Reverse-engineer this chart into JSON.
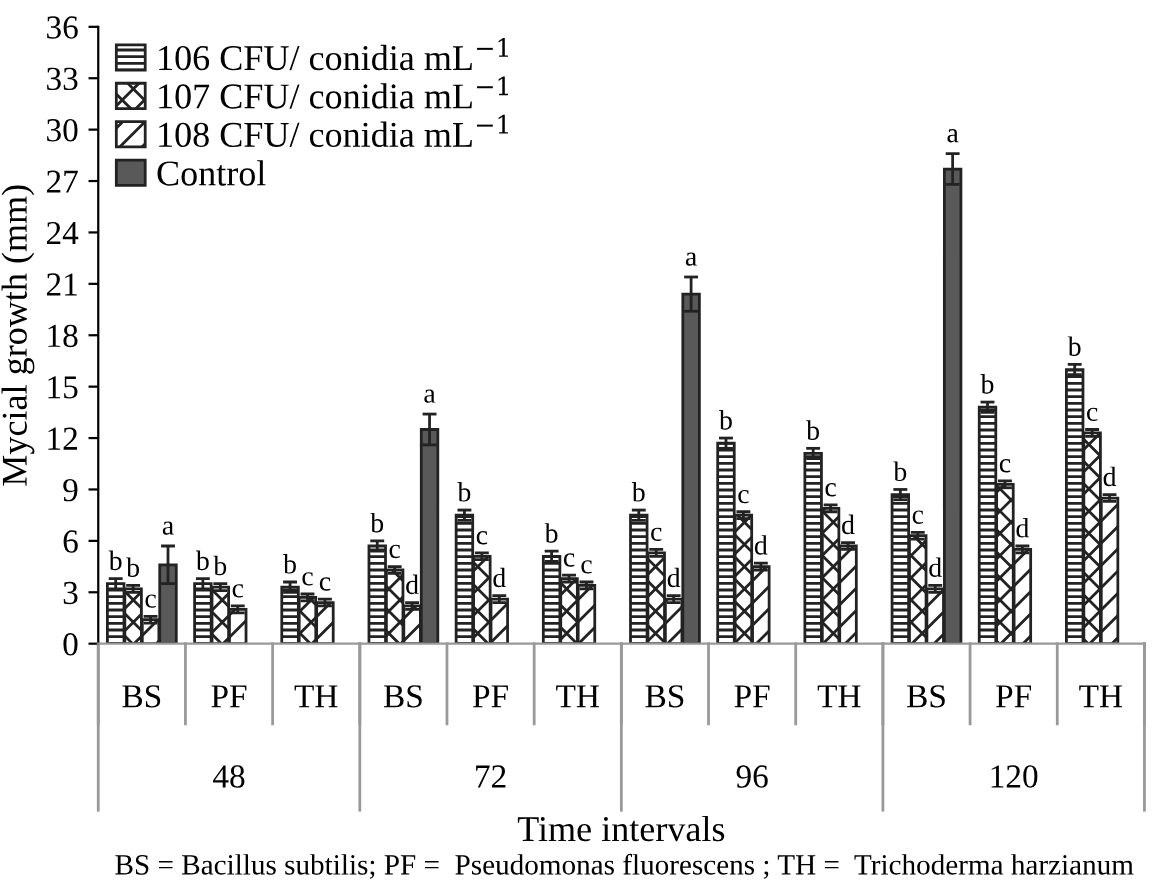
{
  "chart_data": {
    "type": "bar",
    "xlabel": "Time intervals",
    "ylabel": "Mycial growth (mm)",
    "categories": [
      "BS",
      "PF",
      "TH",
      "BS",
      "PF",
      "TH",
      "BS",
      "PF",
      "TH",
      "BS",
      "PF",
      "TH"
    ],
    "series": [
      {
        "name": "106 CFU/ conidia mL$^{−1}$",
        "color": "#222222",
        "values": [
          3.5,
          3.5,
          3.3,
          5.7,
          7.5,
          5.1,
          7.5,
          11.7,
          11.1,
          8.7,
          13.8,
          16.0
        ],
        "errors": [
          0.3,
          0.3,
          0.3,
          0.3,
          0.3,
          0.3,
          0.3,
          0.3,
          0.3,
          0.3,
          0.3,
          0.3
        ],
        "value_labels": [
          "b",
          "b",
          "b",
          "b",
          "b",
          "b",
          "b",
          "b",
          "b",
          "b",
          "b",
          "b"
        ]
      },
      {
        "name": "107 CFU/ conidia mL$^{−1}$",
        "color": "#222222",
        "values": [
          3.2,
          3.3,
          2.7,
          4.3,
          5.1,
          3.8,
          5.3,
          7.5,
          7.9,
          6.3,
          9.3,
          12.3
        ],
        "errors": [
          0.2,
          0.2,
          0.2,
          0.2,
          0.2,
          0.2,
          0.2,
          0.2,
          0.2,
          0.2,
          0.2,
          0.2
        ],
        "value_labels": [
          "b",
          "b",
          "c",
          "c",
          "c",
          "c",
          "c",
          "c",
          "c",
          "c",
          "c",
          "c"
        ]
      },
      {
        "name": "108 CFU/ conidia mL$^{−1}$",
        "color": "#222222",
        "values": [
          1.4,
          2.0,
          2.4,
          2.2,
          2.6,
          3.4,
          2.6,
          4.5,
          5.7,
          3.2,
          5.5,
          8.5
        ],
        "errors": [
          0.2,
          0.2,
          0.2,
          0.2,
          0.2,
          0.2,
          0.2,
          0.2,
          0.2,
          0.2,
          0.2,
          0.2
        ],
        "value_labels": [
          "c",
          "c",
          "c",
          "d",
          "d",
          "c",
          "d",
          "d",
          "d",
          "d",
          "d",
          "d"
        ]
      },
      {
        "name": "Control",
        "color": "#595959",
        "values": [
          4.6,
          null,
          null,
          12.5,
          null,
          null,
          20.4,
          null,
          null,
          27.7,
          null,
          null
        ],
        "errors": [
          1.1,
          null,
          null,
          0.9,
          null,
          null,
          1.0,
          null,
          null,
          0.9,
          null,
          null
        ],
        "value_labels": [
          "a",
          null,
          null,
          "a",
          null,
          null,
          "a",
          null,
          null,
          "a",
          null,
          null
        ]
      }
    ],
    "ylim": [
      0,
      36
    ],
    "yticks": [
      0,
      3,
      6,
      9,
      12,
      15,
      18,
      21,
      24,
      27,
      30,
      33,
      36
    ],
    "grid": false,
    "legend": "top left",
    "annotations": [
      "48",
      "72",
      "96",
      "120",
      "BS = Bacillus subtilis; PF =  Pseudomonas fluorescens ; TH =  Trichoderma harzianum"
    ]
  }
}
